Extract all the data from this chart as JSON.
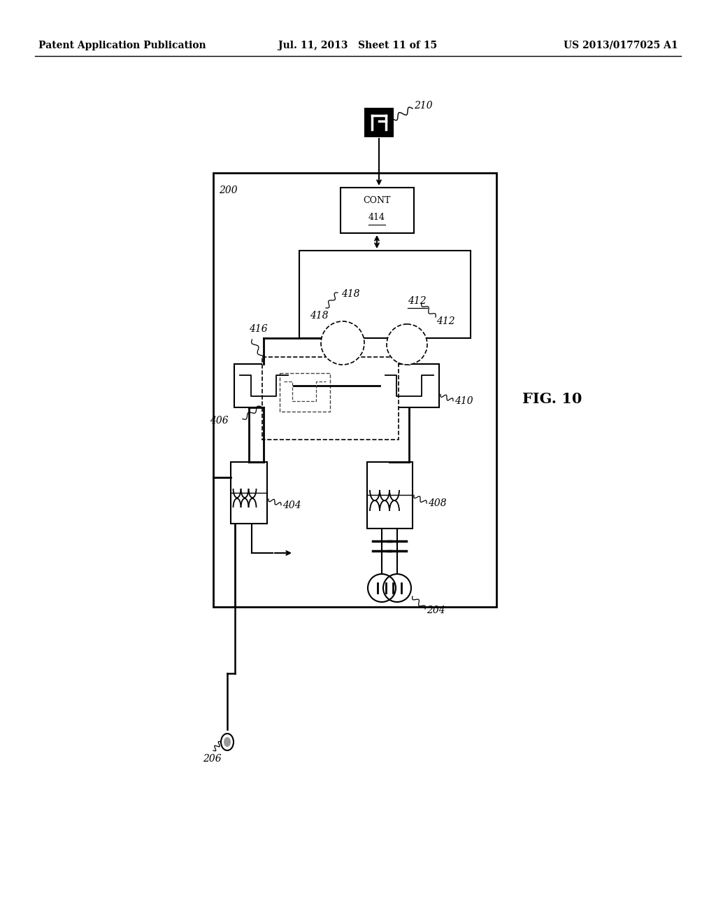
{
  "header_left": "Patent Application Publication",
  "header_mid": "Jul. 11, 2013   Sheet 11 of 15",
  "header_right": "US 2013/0177025 A1",
  "fig_label": "FIG. 10",
  "background_color": "#ffffff"
}
